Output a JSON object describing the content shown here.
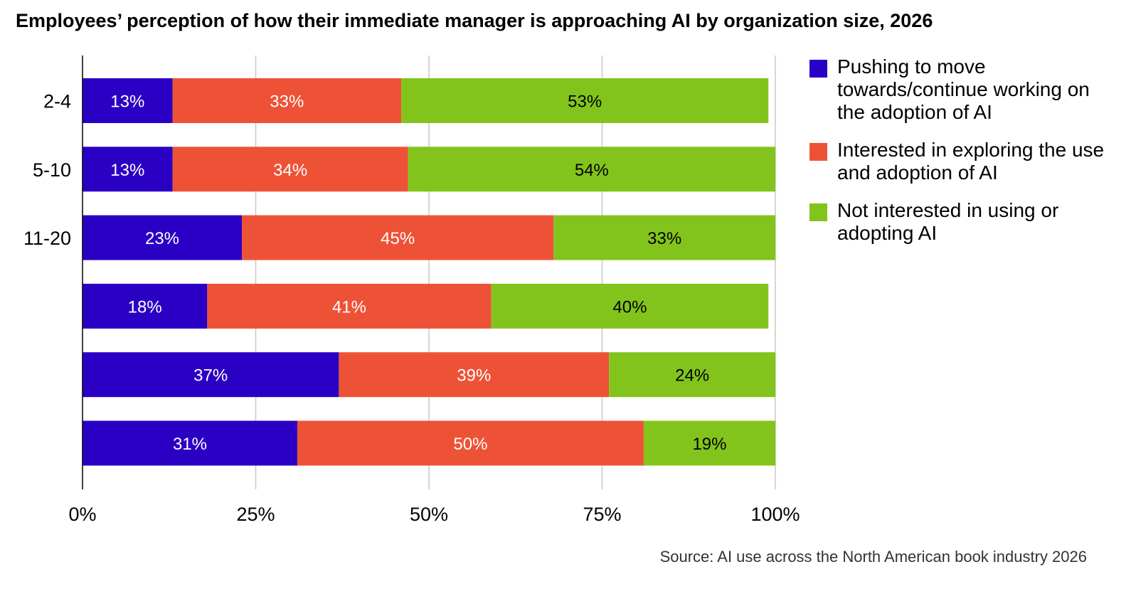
{
  "chart_data": {
    "type": "bar",
    "orientation": "horizontal",
    "stacked": true,
    "title": "Employees’ perception of how their immediate manager is approaching AI by organization size, 2026",
    "categories": [
      "2-4",
      "5-10",
      "11-20",
      "",
      "",
      ""
    ],
    "series": [
      {
        "name": "Pushing to move towards/continue working on the adoption of AI",
        "color": "#2b00c5",
        "label_color": "#ffffff",
        "values": [
          13,
          13,
          23,
          18,
          37,
          31
        ]
      },
      {
        "name": "Interested in exploring the use and adoption of AI",
        "color": "#ee5236",
        "label_color": "#ffffff",
        "values": [
          33,
          34,
          45,
          41,
          39,
          50
        ]
      },
      {
        "name": "Not interested in using or adopting AI",
        "color": "#82c41c",
        "label_color": "#000000",
        "values": [
          53,
          54,
          33,
          40,
          24,
          19
        ]
      }
    ],
    "xlim": [
      0,
      100
    ],
    "x_ticks": [
      "0%",
      "25%",
      "50%",
      "75%",
      "100%"
    ],
    "grid": "vertical",
    "legend_position": "right",
    "value_suffix": "%"
  },
  "source": "Source: AI use across the North American book industry 2026"
}
